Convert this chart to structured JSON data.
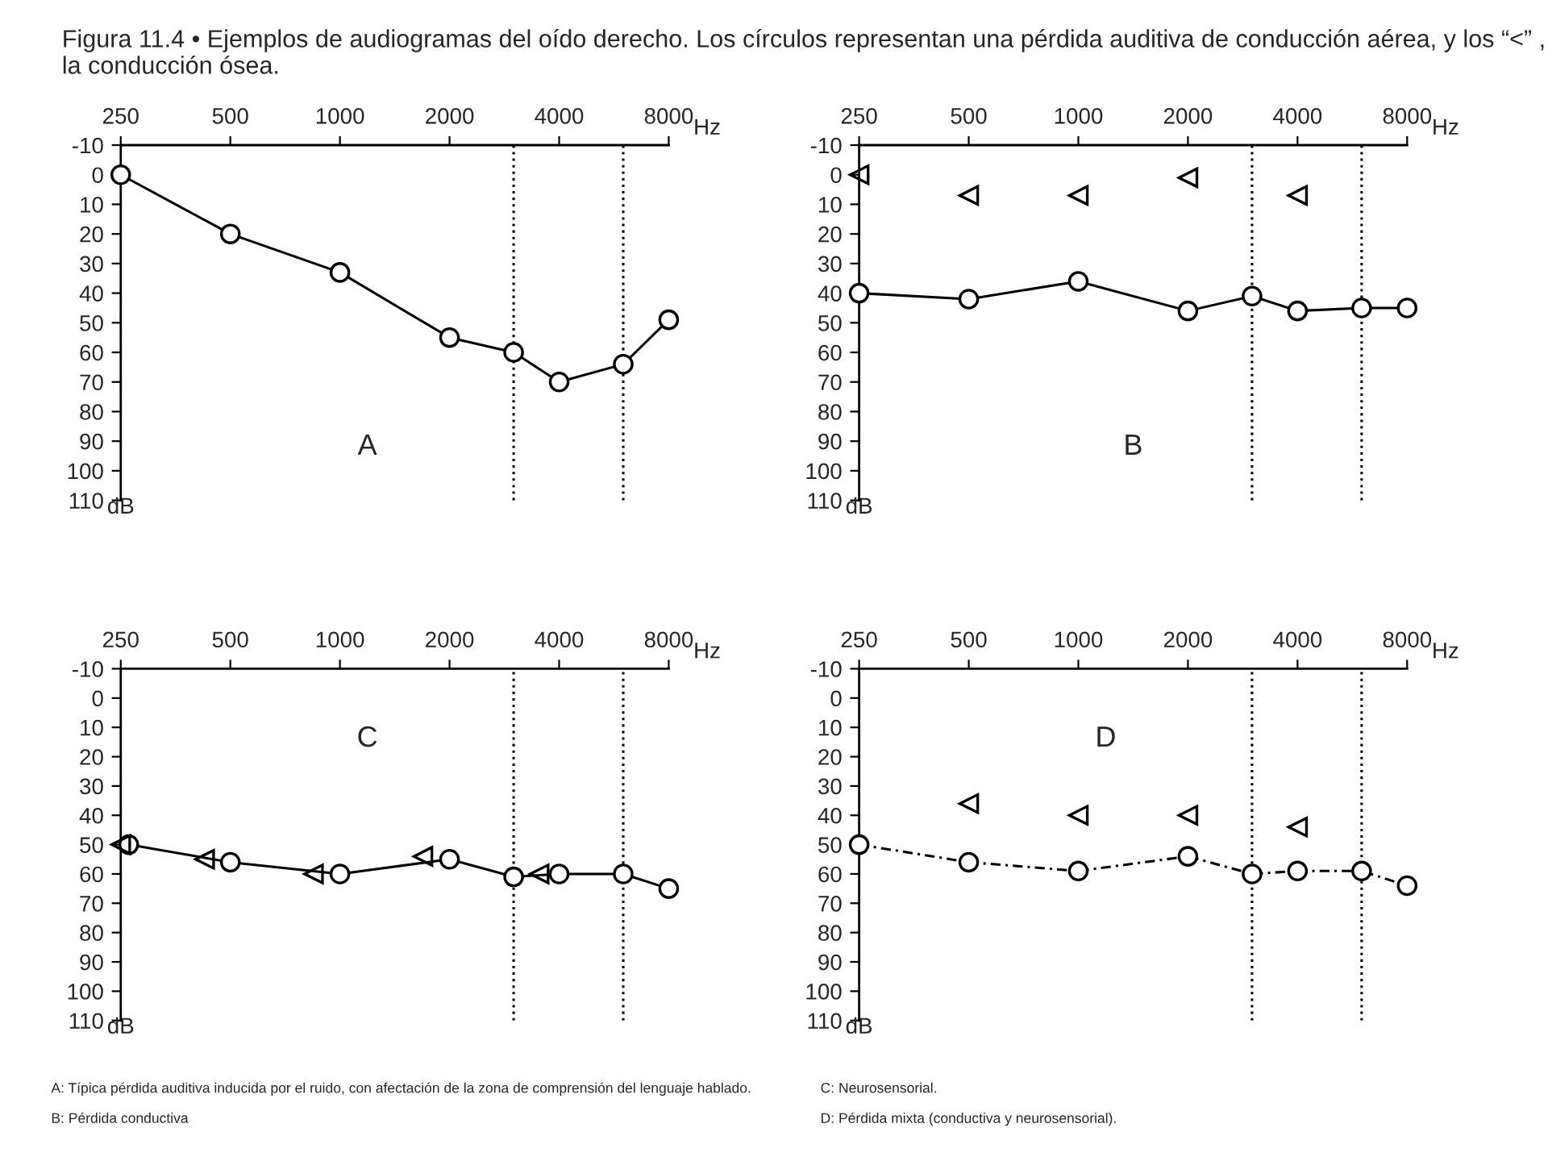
{
  "chart_data": [
    {
      "type": "line",
      "title": "Figura 11.4 • Ejemplos de audiogramas del oído derecho. Los círculos representan una pérdida auditiva de conducción aérea, y los “<” , la conducción ósea.",
      "xlabel": "Hz",
      "ylabel": "dB",
      "log": "x",
      "xlim": [
        250,
        8000
      ],
      "xticks": [
        250,
        500,
        1000,
        2000,
        4000,
        8000
      ],
      "ylim": [
        110,
        -10
      ],
      "yticks": [
        -10,
        0,
        10,
        20,
        30,
        40,
        50,
        60,
        70,
        80,
        90,
        100,
        110
      ],
      "grid": false,
      "legend": false,
      "ref_lines": [
        {
          "axis": "x",
          "value": 3000,
          "line_style": "dotted",
          "color": "#000000"
        },
        {
          "axis": "x",
          "value": 6000,
          "line_style": "dotted",
          "color": "#000000"
        }
      ],
      "series": [
        {
          "type": "line",
          "marker": "circle",
          "line_style": "solid",
          "color": "#000000",
          "x": [
            250,
            500,
            1000,
            2000,
            3000,
            4000,
            6000,
            8000
          ],
          "values": [
            0,
            20,
            33,
            55,
            60,
            70,
            64,
            49
          ]
        }
      ],
      "annotations": [
        "A"
      ]
    },
    {
      "type": "line",
      "xlabel": "Hz",
      "ylabel": "dB",
      "log": "x",
      "xlim": [
        250,
        8000
      ],
      "xticks": [
        250,
        500,
        1000,
        2000,
        4000,
        8000
      ],
      "ylim": [
        110,
        -10
      ],
      "yticks": [
        -10,
        0,
        10,
        20,
        30,
        40,
        50,
        60,
        70,
        80,
        90,
        100,
        110
      ],
      "grid": false,
      "legend": false,
      "ref_lines": [
        {
          "axis": "x",
          "value": 3000,
          "line_style": "dotted",
          "color": "#000000"
        },
        {
          "axis": "x",
          "value": 6000,
          "line_style": "dotted",
          "color": "#000000"
        }
      ],
      "series": [
        {
          "type": "line",
          "marker": "circle",
          "line_style": "solid",
          "color": "#000000",
          "x": [
            250,
            500,
            1000,
            2000,
            3000,
            4000,
            6000,
            8000
          ],
          "values": [
            40,
            42,
            36,
            46,
            41,
            46,
            45,
            45
          ]
        },
        {
          "type": "scatter",
          "marker": "triangle",
          "color": "#000000",
          "x": [
            250,
            500,
            1000,
            2000,
            4000
          ],
          "values": [
            0,
            7,
            7,
            1,
            7
          ]
        }
      ],
      "annotations": [
        "B"
      ]
    },
    {
      "type": "line",
      "xlabel": "Hz",
      "ylabel": "dB",
      "log": "x",
      "xlim": [
        250,
        8000
      ],
      "xticks": [
        250,
        500,
        1000,
        2000,
        4000,
        8000
      ],
      "ylim": [
        110,
        -10
      ],
      "yticks": [
        -10,
        0,
        10,
        20,
        30,
        40,
        50,
        60,
        70,
        80,
        90,
        100,
        110
      ],
      "grid": false,
      "legend": false,
      "ref_lines": [
        {
          "axis": "x",
          "value": 3000,
          "line_style": "dotted",
          "color": "#000000"
        },
        {
          "axis": "x",
          "value": 6000,
          "line_style": "dotted",
          "color": "#000000"
        }
      ],
      "series": [
        {
          "type": "line",
          "marker": "circle",
          "line_style": "solid",
          "color": "#000000",
          "x": [
            263,
            500,
            1000,
            2000,
            3000,
            4000,
            6000,
            8000
          ],
          "values": [
            50,
            56,
            60,
            55,
            61,
            60,
            60,
            65
          ]
        },
        {
          "type": "scatter",
          "marker": "triangle",
          "color": "#000000",
          "x": [
            250,
            425,
            846,
            1690,
            3525
          ],
          "values": [
            50,
            55,
            60,
            54,
            60
          ]
        }
      ],
      "annotations": [
        "C",
        "A: Típica pérdida auditiva inducida por el ruido, con afectación de la zona de comprensión del lenguaje hablado.",
        "B: Pérdida conductiva"
      ]
    },
    {
      "type": "line",
      "xlabel": "Hz",
      "ylabel": "dB",
      "log": "x",
      "xlim": [
        250,
        8000
      ],
      "xticks": [
        250,
        500,
        1000,
        2000,
        4000,
        8000
      ],
      "ylim": [
        110,
        -10
      ],
      "yticks": [
        -10,
        0,
        10,
        20,
        30,
        40,
        50,
        60,
        70,
        80,
        90,
        100,
        110
      ],
      "grid": false,
      "legend": false,
      "ref_lines": [
        {
          "axis": "x",
          "value": 3000,
          "line_style": "dotted",
          "color": "#000000"
        },
        {
          "axis": "x",
          "value": 6000,
          "line_style": "dotted",
          "color": "#000000"
        }
      ],
      "series": [
        {
          "type": "line",
          "marker": "circle",
          "line_style": "dashed",
          "color": "#000000",
          "x": [
            250,
            500,
            1000,
            2000,
            3000,
            4000,
            6000,
            8000
          ],
          "values": [
            50,
            56,
            59,
            54,
            60,
            59,
            59,
            64
          ]
        },
        {
          "type": "scatter",
          "marker": "triangle",
          "color": "#000000",
          "x": [
            500,
            1000,
            2000,
            4000
          ],
          "values": [
            36,
            40,
            40,
            44
          ]
        }
      ],
      "annotations": [
        "D",
        "C: Neurosensorial.",
        "D: Pérdida mixta (conductiva y neurosensorial)."
      ]
    }
  ]
}
